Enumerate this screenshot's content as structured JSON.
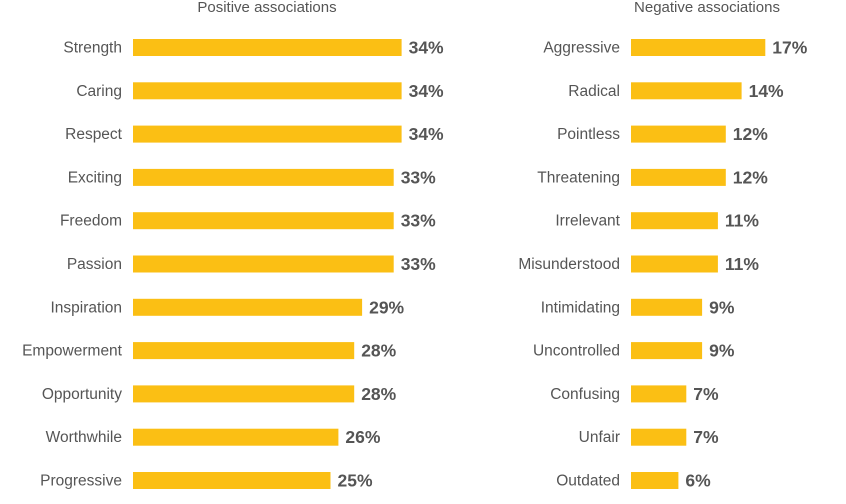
{
  "chart_data": [
    {
      "type": "bar",
      "orientation": "horizontal",
      "title": "Positive associations",
      "categories": [
        "Strength",
        "Caring",
        "Respect",
        "Exciting",
        "Freedom",
        "Passion",
        "Inspiration",
        "Empowerment",
        "Opportunity",
        "Worthwhile",
        "Progressive"
      ],
      "values": [
        34,
        34,
        34,
        33,
        33,
        33,
        29,
        28,
        28,
        26,
        25
      ],
      "labels": [
        "34%",
        "34%",
        "34%",
        "33%",
        "33%",
        "33%",
        "29%",
        "28%",
        "28%",
        "26%",
        "25%"
      ],
      "unit": "%",
      "xlim": [
        0,
        40
      ],
      "grid": false,
      "color": "#FBBF14"
    },
    {
      "type": "bar",
      "orientation": "horizontal",
      "title": "Negative associations",
      "categories": [
        "Aggressive",
        "Radical",
        "Pointless",
        "Threatening",
        "Irrelevant",
        "Misunderstood",
        "Intimidating",
        "Uncontrolled",
        "Confusing",
        "Unfair",
        "Outdated"
      ],
      "values": [
        17,
        14,
        12,
        12,
        11,
        11,
        9,
        9,
        7,
        7,
        6
      ],
      "labels": [
        "17%",
        "14%",
        "12%",
        "12%",
        "11%",
        "11%",
        "9%",
        "9%",
        "7%",
        "7%",
        "6%"
      ],
      "unit": "%",
      "xlim": [
        0,
        40
      ],
      "grid": false,
      "color": "#FBBF14"
    }
  ],
  "colors": {
    "bar": "#FBBF14",
    "text": "#555555"
  }
}
